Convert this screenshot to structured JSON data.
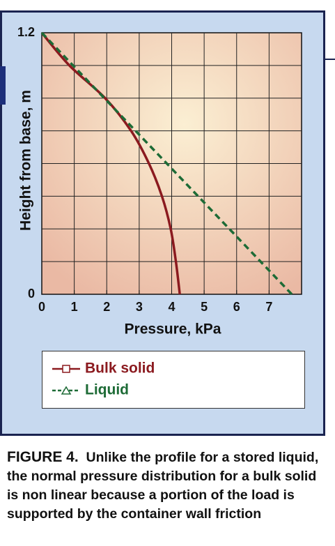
{
  "chart_data": {
    "type": "line",
    "x_label": "Pressure, kPa",
    "y_label": "Height from base, m",
    "xlim": [
      0,
      8
    ],
    "xticks": [
      0,
      1,
      2,
      3,
      4,
      5,
      6,
      7
    ],
    "ylim": [
      0,
      1.2
    ],
    "yticks": [
      0,
      1.2
    ],
    "xgrid": [
      1,
      2,
      3,
      4,
      5,
      6,
      7
    ],
    "ygrid": [
      0.15,
      0.3,
      0.45,
      0.6,
      0.75,
      0.9,
      1.05
    ],
    "series": [
      {
        "name": "Bulk solid",
        "color": "#8b1a1f",
        "dash": false,
        "x": [
          0,
          0.85,
          1.95,
          2.75,
          3.3,
          3.7,
          3.97,
          4.13,
          4.25
        ],
        "values": [
          1.2,
          1.05,
          0.9,
          0.75,
          0.6,
          0.45,
          0.3,
          0.15,
          0
        ]
      },
      {
        "name": "Liquid",
        "color": "#1d6b36",
        "dash": true,
        "x": [
          0,
          7.7
        ],
        "values": [
          1.2,
          0
        ]
      }
    ]
  },
  "caption": {
    "label": "FIGURE 4.",
    "text": "Unlike the profile for a stored liquid, the normal pressure distribution for a bulk solid is non linear because a portion of the load is supported by the container wall friction"
  }
}
